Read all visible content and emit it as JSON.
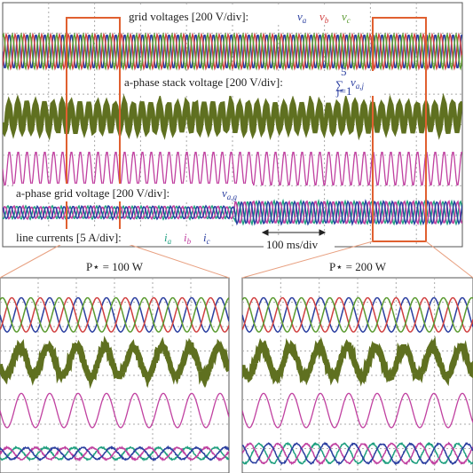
{
  "top": {
    "grid_voltages": {
      "label": "grid voltages [200 V/div]:",
      "symbols": [
        {
          "base": "v",
          "sub": "a"
        },
        {
          "base": "v",
          "sub": "b"
        },
        {
          "base": "v",
          "sub": "c"
        }
      ]
    },
    "stack_voltage": {
      "label": "a-phase stack voltage [200 V/div]:",
      "sum": "∑",
      "upper": "5",
      "lower": "j=1",
      "base": "v",
      "sub": "a,j"
    },
    "grid_voltage": {
      "label": "a-phase grid voltage [200 V/div]:",
      "base": "v",
      "sub": "a,g"
    },
    "line_currents": {
      "label": "line currents [5 A/div]:",
      "symbols": [
        {
          "base": "i",
          "sub": "a"
        },
        {
          "base": "i",
          "sub": "b"
        },
        {
          "base": "i",
          "sub": "c"
        }
      ]
    },
    "timebase": "100 ms/div"
  },
  "zoom_left": {
    "title": "P⋆ = 100 W"
  },
  "zoom_right": {
    "title": "P⋆ = 200 W"
  }
}
